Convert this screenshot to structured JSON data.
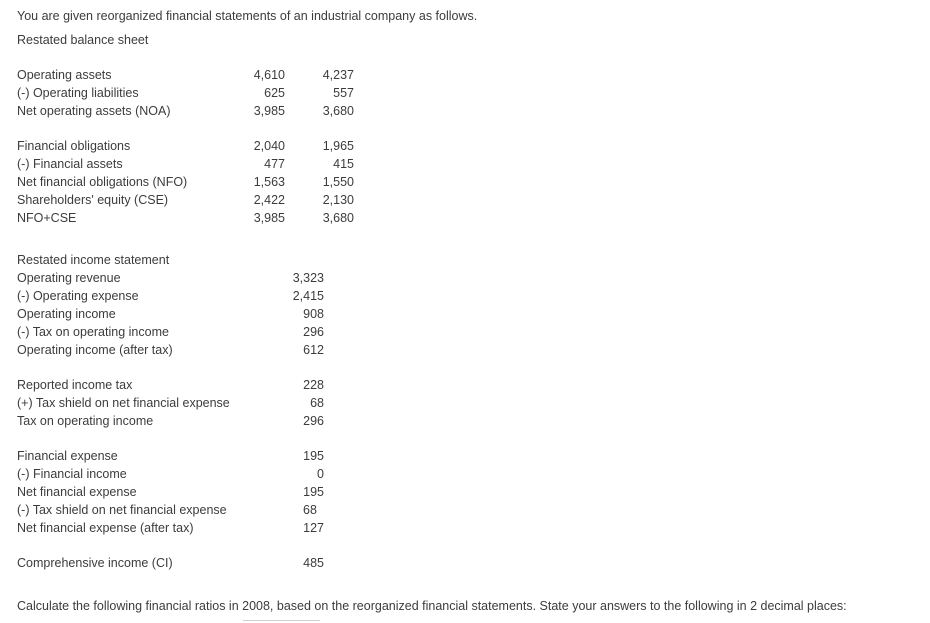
{
  "intro": "You are given reorganized financial statements of an industrial company as follows.",
  "balance_sheet": {
    "title": "Restated balance sheet",
    "rows": [
      {
        "label": "Operating assets",
        "v1": "4,610",
        "v2": "4,237"
      },
      {
        "label": "(-) Operating liabilities",
        "v1": "625",
        "v2": "557"
      },
      {
        "label": "Net operating assets (NOA)",
        "v1": "3,985",
        "v2": "3,680"
      },
      {
        "label": "Financial obligations",
        "v1": "2,040",
        "v2": "1,965"
      },
      {
        "label": "(-) Financial assets",
        "v1": "477",
        "v2": "415"
      },
      {
        "label": "Net financial obligations (NFO)",
        "v1": "1,563",
        "v2": "1,550"
      },
      {
        "label": "Shareholders' equity (CSE)",
        "v1": "2,422",
        "v2": "2,130"
      },
      {
        "label": "NFO+CSE",
        "v1": "3,985",
        "v2": "3,680"
      }
    ]
  },
  "income_statement": {
    "title": "Restated income statement",
    "rows": [
      {
        "label": "Operating revenue",
        "v": "3,323"
      },
      {
        "label": "(-) Operating expense",
        "v": "2,415"
      },
      {
        "label": "Operating income",
        "v": "908"
      },
      {
        "label": "(-) Tax on operating income",
        "v": "296"
      },
      {
        "label": "Operating income (after tax)",
        "v": "612"
      },
      {
        "label": "Reported income tax",
        "v": "228"
      },
      {
        "label": "(+) Tax shield on net financial expense",
        "v": "68"
      },
      {
        "label": "Tax on operating income",
        "v": "296"
      },
      {
        "label": "Financial expense",
        "v": "195"
      },
      {
        "label": "(-) Financial income",
        "v": "0"
      },
      {
        "label": "Net financial expense",
        "v": "195"
      },
      {
        "label": "(-) Tax shield on net financial expense",
        "v": "68"
      },
      {
        "label": "Net financial expense (after tax)",
        "v": "127"
      },
      {
        "label": "Comprehensive income (CI)",
        "v": "485"
      }
    ]
  },
  "question": "Calculate the following financial ratios in 2008, based on the reorganized financial statements. State your answers to the following in 2 decimal places:"
}
